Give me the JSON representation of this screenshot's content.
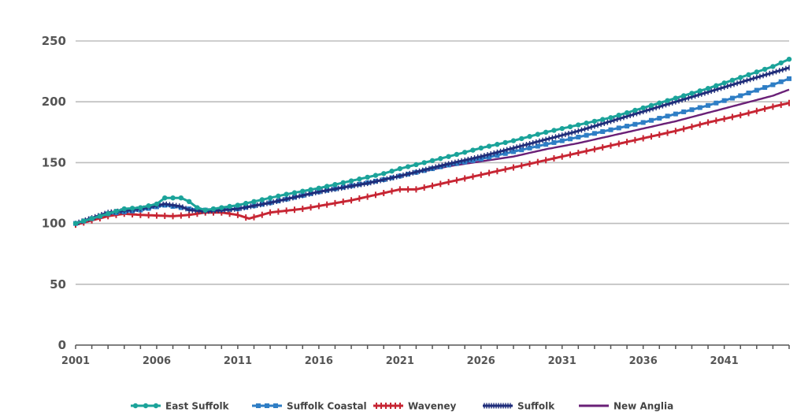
{
  "chart_data": {
    "type": "line",
    "x_start": 2001,
    "x_end": 2045,
    "x_ticks": [
      "2001",
      "2006",
      "2011",
      "2016",
      "2021",
      "2026",
      "2031",
      "2036",
      "2041"
    ],
    "y_ticks": [
      "0",
      "50",
      "100",
      "150",
      "200",
      "250"
    ],
    "ylim": [
      0,
      250
    ],
    "grid": "horizontal",
    "legend_position": "bottom",
    "series": [
      {
        "name": "East Suffolk",
        "color": "#1ba39a",
        "marker": "dot",
        "anchors": [
          [
            2001,
            100
          ],
          [
            2002,
            104
          ],
          [
            2003,
            108
          ],
          [
            2004,
            112
          ],
          [
            2005,
            113
          ],
          [
            2006,
            116
          ],
          [
            2006.5,
            121
          ],
          [
            2007.5,
            121
          ],
          [
            2008,
            118
          ],
          [
            2008.5,
            113
          ],
          [
            2009,
            111
          ],
          [
            2010,
            113
          ],
          [
            2011,
            115
          ],
          [
            2012,
            118
          ],
          [
            2013,
            121
          ],
          [
            2014,
            124
          ],
          [
            2016,
            129
          ],
          [
            2018,
            135
          ],
          [
            2020,
            141
          ],
          [
            2021,
            145
          ],
          [
            2024,
            155
          ],
          [
            2026,
            162
          ],
          [
            2028,
            168
          ],
          [
            2030,
            175
          ],
          [
            2032,
            181
          ],
          [
            2034,
            187
          ],
          [
            2036,
            195
          ],
          [
            2038,
            203
          ],
          [
            2040,
            211
          ],
          [
            2042,
            220
          ],
          [
            2044,
            229
          ],
          [
            2045,
            235
          ]
        ]
      },
      {
        "name": "Suffolk Coastal",
        "color": "#2f7ec5",
        "marker": "square",
        "anchors": [
          [
            2001,
            100
          ],
          [
            2003,
            108
          ],
          [
            2005,
            111
          ],
          [
            2006.5,
            115
          ],
          [
            2008,
            112
          ],
          [
            2009,
            111
          ],
          [
            2011,
            112
          ],
          [
            2013,
            117
          ],
          [
            2016,
            126
          ],
          [
            2020,
            136
          ],
          [
            2021,
            139
          ],
          [
            2024,
            148
          ],
          [
            2026,
            153
          ],
          [
            2028,
            159
          ],
          [
            2030,
            165
          ],
          [
            2032,
            171
          ],
          [
            2034,
            177
          ],
          [
            2036,
            183
          ],
          [
            2038,
            190
          ],
          [
            2040,
            197
          ],
          [
            2042,
            205
          ],
          [
            2044,
            214
          ],
          [
            2045,
            219
          ]
        ]
      },
      {
        "name": "Waveney",
        "color": "#c72533",
        "marker": "plus",
        "anchors": [
          [
            2001,
            99
          ],
          [
            2003,
            106
          ],
          [
            2004,
            108
          ],
          [
            2005,
            107
          ],
          [
            2007,
            106
          ],
          [
            2008,
            107
          ],
          [
            2009,
            109
          ],
          [
            2010,
            109
          ],
          [
            2011,
            107
          ],
          [
            2011.7,
            104
          ],
          [
            2013,
            109
          ],
          [
            2015,
            112
          ],
          [
            2018,
            119
          ],
          [
            2020,
            125
          ],
          [
            2021,
            128
          ],
          [
            2022,
            128
          ],
          [
            2024,
            134
          ],
          [
            2026,
            140
          ],
          [
            2028,
            146
          ],
          [
            2030,
            152
          ],
          [
            2032,
            158
          ],
          [
            2034,
            164
          ],
          [
            2036,
            170
          ],
          [
            2038,
            176
          ],
          [
            2040,
            183
          ],
          [
            2042,
            189
          ],
          [
            2044,
            196
          ],
          [
            2045,
            199
          ]
        ]
      },
      {
        "name": "Suffolk",
        "color": "#1f2d7a",
        "marker": "dense",
        "anchors": [
          [
            2001,
            100
          ],
          [
            2003,
            109
          ],
          [
            2005,
            112
          ],
          [
            2006.5,
            116
          ],
          [
            2007.5,
            114
          ],
          [
            2008,
            111
          ],
          [
            2009,
            110
          ],
          [
            2011,
            112
          ],
          [
            2013,
            117
          ],
          [
            2016,
            126
          ],
          [
            2019,
            133
          ],
          [
            2021,
            139
          ],
          [
            2024,
            149
          ],
          [
            2026,
            155
          ],
          [
            2028,
            162
          ],
          [
            2030,
            169
          ],
          [
            2032,
            176
          ],
          [
            2034,
            184
          ],
          [
            2036,
            192
          ],
          [
            2038,
            200
          ],
          [
            2040,
            208
          ],
          [
            2042,
            216
          ],
          [
            2044,
            224
          ],
          [
            2045,
            228
          ]
        ]
      },
      {
        "name": "New Anglia",
        "color": "#6a2077",
        "marker": "none",
        "anchors": [
          [
            2001,
            100
          ],
          [
            2003,
            108
          ],
          [
            2005,
            112
          ],
          [
            2006.5,
            116
          ],
          [
            2007.5,
            114
          ],
          [
            2008,
            111
          ],
          [
            2009,
            110
          ],
          [
            2011,
            112
          ],
          [
            2013,
            117
          ],
          [
            2016,
            126
          ],
          [
            2019,
            133
          ],
          [
            2021,
            139
          ],
          [
            2024,
            147
          ],
          [
            2026,
            151
          ],
          [
            2028,
            155
          ],
          [
            2030,
            161
          ],
          [
            2032,
            166
          ],
          [
            2034,
            172
          ],
          [
            2036,
            178
          ],
          [
            2038,
            184
          ],
          [
            2040,
            191
          ],
          [
            2042,
            198
          ],
          [
            2044,
            205
          ],
          [
            2045,
            210
          ]
        ]
      }
    ]
  }
}
